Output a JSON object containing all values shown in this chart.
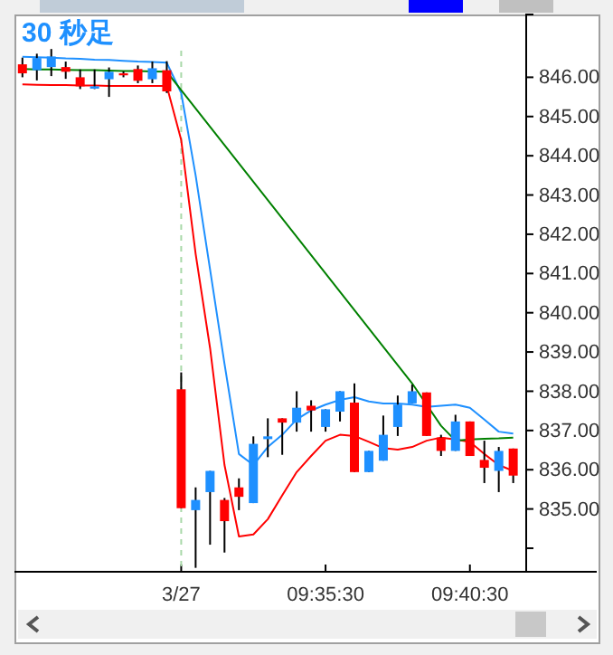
{
  "chart_data": {
    "type": "candlestick",
    "title": "30 秒足",
    "categories": [
      null,
      null,
      null,
      null,
      null,
      null,
      null,
      null,
      null,
      null,
      null,
      "3/27",
      null,
      null,
      null,
      null,
      null,
      null,
      null,
      null,
      null,
      "09:35:30",
      null,
      null,
      null,
      null,
      null,
      null,
      null,
      null,
      null,
      "09:40:30",
      null,
      null,
      null
    ],
    "ohlc": [
      [
        846.33,
        846.5,
        846.0,
        846.1
      ],
      [
        846.18,
        846.6,
        845.92,
        846.49
      ],
      [
        846.26,
        846.72,
        846.03,
        846.53
      ],
      [
        846.26,
        846.4,
        845.96,
        846.14
      ],
      [
        846.0,
        846.2,
        845.7,
        845.77
      ],
      [
        845.71,
        846.2,
        845.7,
        845.77
      ],
      [
        845.95,
        846.25,
        845.5,
        846.14
      ],
      [
        846.1,
        846.15,
        846.0,
        846.05
      ],
      [
        846.21,
        846.3,
        845.85,
        845.91
      ],
      [
        845.95,
        846.4,
        845.85,
        846.23
      ],
      [
        846.18,
        846.41,
        845.6,
        845.64
      ],
      [
        838.05,
        838.48,
        835.02,
        835.02
      ],
      [
        834.97,
        835.55,
        833.5,
        835.23
      ],
      [
        835.43,
        835.97,
        834.09,
        835.97
      ],
      [
        835.23,
        835.28,
        833.89,
        834.69
      ],
      [
        835.55,
        835.78,
        834.97,
        835.31
      ],
      [
        835.15,
        836.85,
        835.15,
        836.66
      ],
      [
        836.78,
        837.31,
        836.32,
        836.85
      ],
      [
        837.31,
        837.31,
        836.38,
        837.2
      ],
      [
        837.2,
        838.0,
        836.97,
        837.58
      ],
      [
        837.63,
        837.77,
        836.97,
        837.51
      ],
      [
        837.09,
        837.54,
        836.97,
        837.54
      ],
      [
        837.48,
        838.0,
        837.23,
        838.0
      ],
      [
        837.71,
        838.2,
        835.94,
        835.94
      ],
      [
        835.94,
        836.48,
        835.94,
        836.48
      ],
      [
        836.23,
        837.38,
        836.23,
        836.89
      ],
      [
        837.09,
        837.89,
        836.86,
        837.66
      ],
      [
        837.69,
        838.17,
        837.69,
        838.0
      ],
      [
        837.97,
        837.97,
        836.86,
        836.86
      ],
      [
        836.82,
        836.89,
        836.35,
        836.48
      ],
      [
        836.48,
        837.4,
        836.48,
        837.23
      ],
      [
        837.23,
        837.23,
        836.35,
        836.35
      ],
      [
        836.25,
        836.74,
        835.66,
        836.05
      ],
      [
        835.97,
        836.58,
        835.43,
        836.48
      ],
      [
        836.54,
        836.54,
        835.66,
        835.85
      ]
    ],
    "colors": [
      "#ff0000",
      "#1e90ff",
      "#1e90ff",
      "#ff0000",
      "#ff0000",
      "#1e90ff",
      "#1e90ff",
      "#ff0000",
      "#ff0000",
      "#1e90ff",
      "#ff0000",
      "#ff0000",
      "#1e90ff",
      "#1e90ff",
      "#ff0000",
      "#ff0000",
      "#1e90ff",
      "#1e90ff",
      "#ff0000",
      "#1e90ff",
      "#ff0000",
      "#1e90ff",
      "#1e90ff",
      "#ff0000",
      "#1e90ff",
      "#1e90ff",
      "#1e90ff",
      "#1e90ff",
      "#ff0000",
      "#ff0000",
      "#1e90ff",
      "#ff0000",
      "#ff0000",
      "#1e90ff",
      "#ff0000"
    ],
    "series": [
      {
        "type": "line",
        "color": "#1e90ff",
        "values": [
          846.52,
          846.51,
          846.5,
          846.48,
          846.47,
          846.45,
          846.44,
          846.42,
          846.4,
          846.39,
          846.37,
          845.6,
          843.5,
          841.1,
          838.7,
          836.4,
          836.12,
          836.58,
          836.89,
          837.28,
          837.51,
          837.66,
          837.78,
          837.85,
          837.74,
          837.69,
          837.69,
          837.66,
          837.6,
          837.63,
          837.66,
          837.58,
          837.28,
          836.97,
          836.92
        ]
      },
      {
        "type": "line",
        "color": "#ff0000",
        "values": [
          845.82,
          845.81,
          845.8,
          845.8,
          845.79,
          845.79,
          845.78,
          845.78,
          845.78,
          845.78,
          845.78,
          844.4,
          841.5,
          839.1,
          836.12,
          834.3,
          834.35,
          834.74,
          835.35,
          835.94,
          836.35,
          836.74,
          836.89,
          836.86,
          836.71,
          836.55,
          836.51,
          836.58,
          836.74,
          836.82,
          836.77,
          836.71,
          836.4,
          836.12,
          835.97
        ]
      },
      {
        "type": "line",
        "color": "#008000",
        "values": [
          846.21,
          846.2,
          846.2,
          846.19,
          846.18,
          846.18,
          846.17,
          846.16,
          846.16,
          846.15,
          846.14,
          null,
          null,
          null,
          null,
          null,
          null,
          null,
          null,
          null,
          null,
          null,
          null,
          null,
          null,
          null,
          null,
          838.2,
          837.66,
          837.12,
          836.74,
          836.77,
          836.79,
          836.8,
          836.82
        ]
      }
    ],
    "ylim": [
      833.4,
      847.6
    ],
    "yticks": [
      {
        "value": 834,
        "label": null
      },
      {
        "value": 835,
        "label": "835.00"
      },
      {
        "value": 836,
        "label": "836.00"
      },
      {
        "value": 837,
        "label": "837.00"
      },
      {
        "value": 838,
        "label": "838.00"
      },
      {
        "value": 839,
        "label": "839.00"
      },
      {
        "value": 840,
        "label": "840.00"
      },
      {
        "value": 841,
        "label": "841.00"
      },
      {
        "value": 842,
        "label": "842.00"
      },
      {
        "value": 843,
        "label": "843.00"
      },
      {
        "value": 844,
        "label": "844.00"
      },
      {
        "value": 845,
        "label": "845.00"
      },
      {
        "value": 846,
        "label": "846.00"
      }
    ],
    "ref_lines": [
      {
        "axis": "x",
        "value": "3/27",
        "color": "#a8d8a8",
        "line_style": "dashed"
      }
    ]
  }
}
